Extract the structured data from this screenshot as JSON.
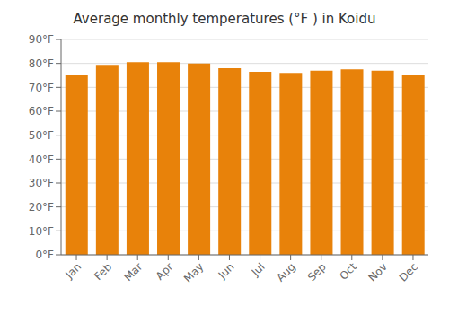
{
  "chart_data": {
    "type": "bar",
    "title": "Average monthly temperatures (°F ) in Koidu",
    "categories": [
      "Jan",
      "Feb",
      "Mar",
      "Apr",
      "May",
      "Jun",
      "Jul",
      "Aug",
      "Sep",
      "Oct",
      "Nov",
      "Dec"
    ],
    "values": [
      75,
      79,
      80.5,
      80.5,
      80,
      78,
      76.5,
      76,
      77,
      77.5,
      77,
      75
    ],
    "color": "#E8820A",
    "ylim": [
      0,
      90
    ],
    "yticks": [
      {
        "value": 0,
        "label": "0°F"
      },
      {
        "value": 10,
        "label": "10°F"
      },
      {
        "value": 20,
        "label": "20°F"
      },
      {
        "value": 30,
        "label": "30°F"
      },
      {
        "value": 40,
        "label": "40°F"
      },
      {
        "value": 50,
        "label": "50°F"
      },
      {
        "value": 60,
        "label": "60°F"
      },
      {
        "value": 70,
        "label": "70°F"
      },
      {
        "value": 80,
        "label": "80°F"
      },
      {
        "value": 90,
        "label": "90°F"
      }
    ],
    "grid": true
  }
}
